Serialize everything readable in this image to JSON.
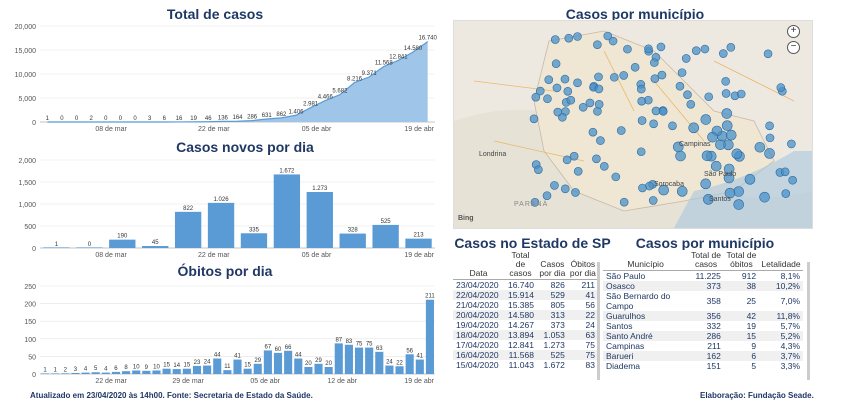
{
  "titles": {
    "total": "Total de casos",
    "novos": "Casos novos por dia",
    "obitos": "Óbitos por dia",
    "mapa": "Casos por município",
    "estado": "Casos no Estado de SP",
    "municipio": "Casos por município"
  },
  "chart_data": [
    {
      "type": "area",
      "title": "Total de casos",
      "ylim": [
        0,
        20000
      ],
      "yticks": [
        "0",
        "5,000",
        "10,000",
        "15,000",
        "20,000"
      ],
      "xticks": [
        "08 de mar",
        "22 de mar",
        "05 de abr",
        "19 de abr"
      ],
      "labels": [
        "1",
        "0",
        "0",
        "2",
        "0",
        "0",
        "0",
        "3",
        "6",
        "16",
        "19",
        "46",
        "136",
        "164",
        "286",
        "631",
        "862",
        "1.406",
        "2.981",
        "4.466",
        "5.682",
        "8.216",
        "9.371",
        "11.568",
        "12.841",
        "14.580",
        "16.740"
      ],
      "values": [
        1,
        0,
        0,
        2,
        0,
        0,
        0,
        3,
        6,
        16,
        19,
        46,
        136,
        164,
        286,
        631,
        862,
        1406,
        2981,
        4466,
        5682,
        8216,
        9371,
        11568,
        12841,
        14580,
        16740
      ]
    },
    {
      "type": "bar",
      "title": "Casos novos por dia",
      "ylim": [
        0,
        2000
      ],
      "yticks": [
        "0",
        "500",
        "1,000",
        "1,500",
        "2,000"
      ],
      "xticks": [
        "08 de mar",
        "22 de mar",
        "05 de abr",
        "19 de abr"
      ],
      "labels": [
        "1",
        "0",
        "190",
        "45",
        "822",
        "1.026",
        "335",
        "1.672",
        "1.273",
        "328",
        "525",
        "213"
      ],
      "values": [
        1,
        0,
        190,
        45,
        822,
        1026,
        335,
        1672,
        1273,
        328,
        525,
        213
      ]
    },
    {
      "type": "bar",
      "title": "Óbitos por dia",
      "ylim": [
        0,
        250
      ],
      "yticks": [
        "0",
        "50",
        "100",
        "150",
        "200",
        "250"
      ],
      "xticks": [
        "22 de mar",
        "29 de mar",
        "05 de abr",
        "12 de abr",
        "19 de abr"
      ],
      "labels": [
        "1",
        "1",
        "2",
        "3",
        "4",
        "5",
        "4",
        "6",
        "8",
        "10",
        "9",
        "10",
        "15",
        "14",
        "15",
        "23",
        "24",
        "44",
        "11",
        "41",
        "15",
        "29",
        "67",
        "60",
        "66",
        "44",
        "20",
        "29",
        "20",
        "87",
        "83",
        "75",
        "75",
        "63",
        "24",
        "22",
        "56",
        "41",
        "211"
      ],
      "values": [
        1,
        1,
        2,
        3,
        4,
        5,
        4,
        6,
        8,
        10,
        9,
        10,
        15,
        14,
        15,
        23,
        24,
        44,
        11,
        41,
        15,
        29,
        67,
        60,
        66,
        44,
        20,
        29,
        20,
        87,
        83,
        75,
        75,
        63,
        24,
        22,
        56,
        41,
        211
      ]
    }
  ],
  "map": {
    "labels": [
      "São Paulo",
      "Campinas",
      "Santos",
      "Sorocaba",
      "PARANÁ",
      "Londrina"
    ],
    "bing": "Bing"
  },
  "estado": {
    "headers": [
      "Data",
      "Total de casos",
      "Casos por dia",
      "Óbitos por dia"
    ],
    "rows": [
      [
        "23/04/2020",
        "16.740",
        "826",
        "211"
      ],
      [
        "22/04/2020",
        "15.914",
        "529",
        "41"
      ],
      [
        "21/04/2020",
        "15.385",
        "805",
        "56"
      ],
      [
        "20/04/2020",
        "14.580",
        "313",
        "22"
      ],
      [
        "19/04/2020",
        "14.267",
        "373",
        "24"
      ],
      [
        "18/04/2020",
        "13.894",
        "1.053",
        "63"
      ],
      [
        "17/04/2020",
        "12.841",
        "1.273",
        "75"
      ],
      [
        "16/04/2020",
        "11.568",
        "525",
        "75"
      ],
      [
        "15/04/2020",
        "11.043",
        "1.672",
        "83"
      ]
    ]
  },
  "municipio": {
    "headers": [
      "Município",
      "Total de casos",
      "Total de óbitos",
      "Letalidade"
    ],
    "rows": [
      [
        "São Paulo",
        "11.225",
        "912",
        "8,1%"
      ],
      [
        "Osasco",
        "373",
        "38",
        "10,2%"
      ],
      [
        "São Bernardo do Campo",
        "358",
        "25",
        "7,0%"
      ],
      [
        "Guarulhos",
        "356",
        "42",
        "11,8%"
      ],
      [
        "Santos",
        "332",
        "19",
        "5,7%"
      ],
      [
        "Santo André",
        "286",
        "15",
        "5,2%"
      ],
      [
        "Campinas",
        "211",
        "9",
        "4,3%"
      ],
      [
        "Barueri",
        "162",
        "6",
        "3,7%"
      ],
      [
        "Diadema",
        "151",
        "5",
        "3,3%"
      ]
    ]
  },
  "footer": {
    "left": "Atualizado em 23/04/2020 às 14h00. Fonte: Secretaria de Estado da Saúde.",
    "right": "Elaboração: Fundação Seade."
  },
  "colors": {
    "accent": "#1f3864",
    "bar": "#5b9bd5",
    "area": "#9fc5e8",
    "dot": "#4a90c8"
  }
}
